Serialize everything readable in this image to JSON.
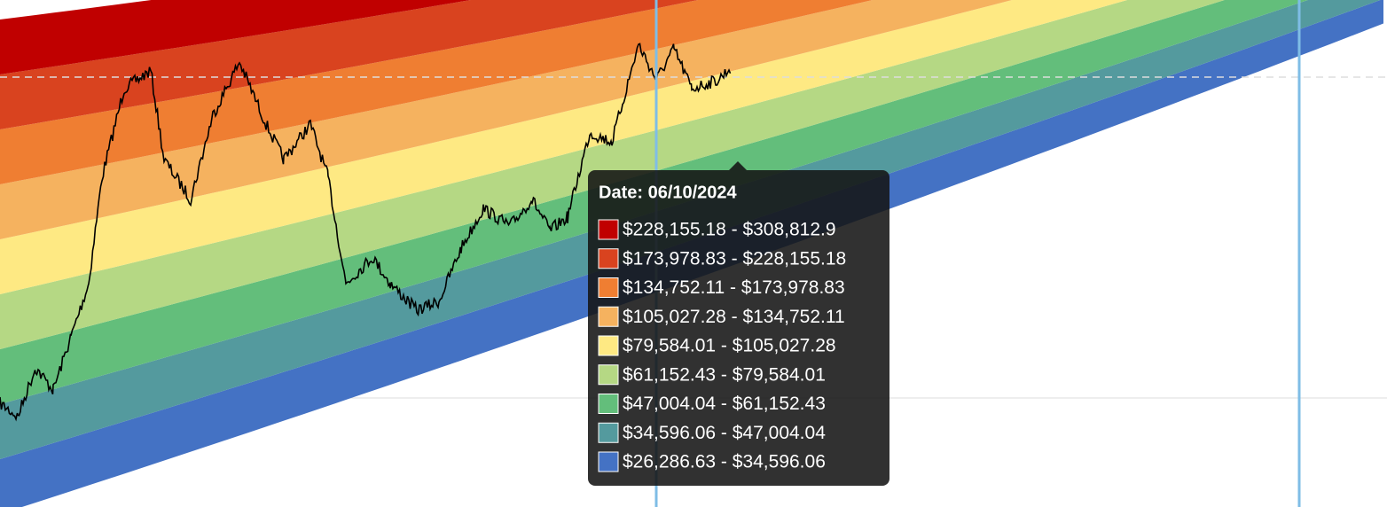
{
  "tooltip": {
    "title": "Date: 06/10/2024",
    "items": [
      {
        "label": "$228,155.18 - $308,812.9",
        "color": "#c00000"
      },
      {
        "label": "$173,978.83 - $228,155.18",
        "color": "#d9431f"
      },
      {
        "label": "$134,752.11 - $173,978.83",
        "color": "#ef7e32"
      },
      {
        "label": "$105,027.28 - $134,752.11",
        "color": "#f5b25f"
      },
      {
        "label": "$79,584.01 - $105,027.28",
        "color": "#fee983"
      },
      {
        "label": "$61,152.43 - $79,584.01",
        "color": "#b5d884"
      },
      {
        "label": "$47,004.04 - $61,152.43",
        "color": "#63be7b"
      },
      {
        "label": "$34,596.06 - $47,004.04",
        "color": "#549a9e"
      },
      {
        "label": "$26,286.63 - $34,596.06",
        "color": "#4472c4"
      }
    ]
  }
}
